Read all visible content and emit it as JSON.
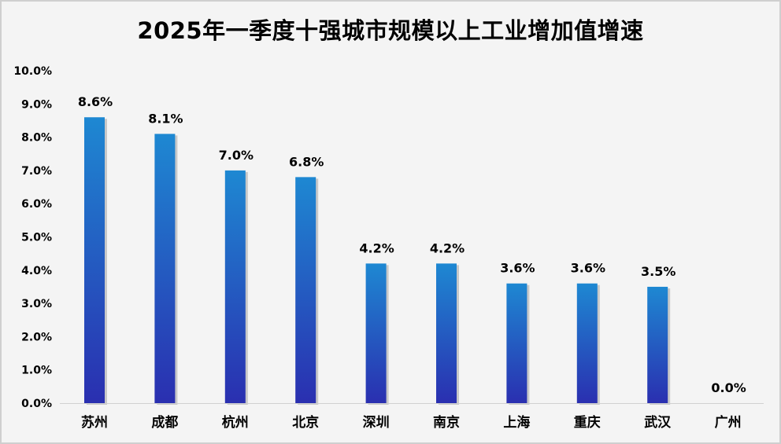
{
  "chart_data": {
    "type": "bar",
    "title": "2025年一季度十强城市规模以上工业增加值增速",
    "categories": [
      "苏州",
      "成都",
      "杭州",
      "北京",
      "深圳",
      "南京",
      "上海",
      "重庆",
      "武汉",
      "广州"
    ],
    "values": [
      8.6,
      8.1,
      7.0,
      6.8,
      4.2,
      4.2,
      3.6,
      3.6,
      3.5,
      0.0
    ],
    "data_labels": [
      "8.6%",
      "8.1%",
      "7.0%",
      "6.8%",
      "4.2%",
      "4.2%",
      "3.6%",
      "3.6%",
      "3.5%",
      "0.0%"
    ],
    "ytick_labels": [
      "0.0%",
      "1.0%",
      "2.0%",
      "3.0%",
      "4.0%",
      "5.0%",
      "6.0%",
      "7.0%",
      "8.0%",
      "9.0%",
      "10.0%"
    ],
    "ylim": [
      0,
      10
    ],
    "xlabel": "",
    "ylabel": "",
    "grid": false,
    "legend": "none",
    "colors": {
      "bar_top": "#1e88d2",
      "bar_bottom": "#2a2fb0",
      "background": "#f4f4f4"
    }
  }
}
